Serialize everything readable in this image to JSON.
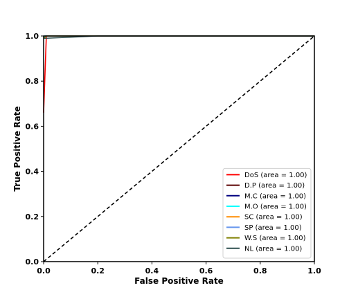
{
  "chart_data": {
    "type": "line",
    "xlabel": "False Positive Rate",
    "ylabel": "True Positive Rate",
    "xlim": [
      0,
      1
    ],
    "ylim": [
      0,
      1
    ],
    "xticks": [
      "0.0",
      "0.2",
      "0.4",
      "0.6",
      "0.8",
      "1.0"
    ],
    "yticks": [
      "0.0",
      "0.2",
      "0.4",
      "0.6",
      "0.8",
      "1.0"
    ],
    "grid": false,
    "legend_position": "lower-right",
    "diagonal": {
      "x": [
        0,
        1
      ],
      "y": [
        0,
        1
      ],
      "color": "#000000",
      "style": "dashed"
    },
    "series": [
      {
        "name": "DoS (area = 1.00)",
        "color": "#ff0000",
        "x": [
          0,
          0.01,
          1
        ],
        "y": [
          0.66,
          1,
          1
        ]
      },
      {
        "name": "D.P (area = 1.00)",
        "color": "#5a0000",
        "x": [
          0,
          0.01,
          1
        ],
        "y": [
          0.99,
          1,
          1
        ]
      },
      {
        "name": "M.C (area = 1.00)",
        "color": "#000080",
        "x": [
          0,
          0.005,
          1
        ],
        "y": [
          0.99,
          1,
          1
        ]
      },
      {
        "name": "M.O (area = 1.00)",
        "color": "#00ffff",
        "x": [
          0,
          0.005,
          1
        ],
        "y": [
          0.99,
          1,
          1
        ]
      },
      {
        "name": "SC (area = 1.00)",
        "color": "#ff8c00",
        "x": [
          0,
          0.01,
          1
        ],
        "y": [
          0.99,
          1,
          1
        ]
      },
      {
        "name": "SP (area = 1.00)",
        "color": "#6495ed",
        "x": [
          0,
          0.01,
          1
        ],
        "y": [
          0.99,
          1,
          1
        ]
      },
      {
        "name": "W.S (area = 1.00)",
        "color": "#808000",
        "x": [
          0,
          0.01,
          1
        ],
        "y": [
          0.99,
          1,
          1
        ]
      },
      {
        "name": "NL (area = 1.00)",
        "color": "#2f4f4f",
        "x": [
          0,
          0.01,
          0.2,
          1
        ],
        "y": [
          0.99,
          0.99,
          1,
          1
        ]
      }
    ]
  }
}
